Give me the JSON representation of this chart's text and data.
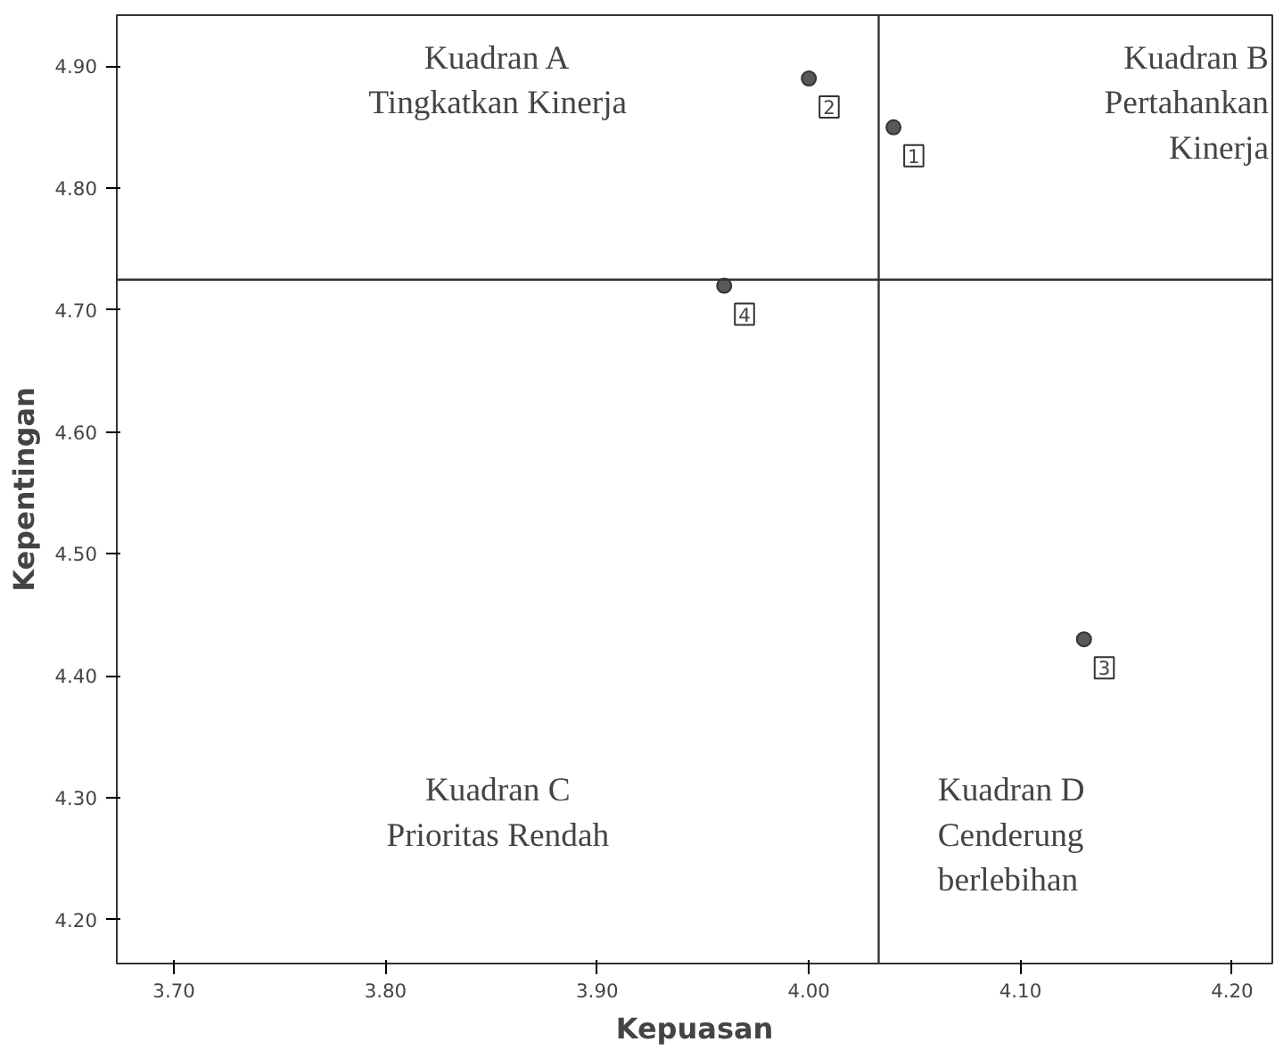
{
  "chart_data": {
    "type": "scatter",
    "xlabel": "Kepuasan",
    "ylabel": "Kepentingan",
    "x": [
      4.04,
      4.0,
      4.13,
      3.96
    ],
    "values": [
      4.85,
      4.89,
      4.43,
      4.72
    ],
    "color": "#595959",
    "marker": "circle",
    "grid": false,
    "xlim": [
      3.673,
      4.219
    ],
    "ylim": [
      4.164,
      4.942
    ],
    "xticks": [
      {
        "value": 3.7,
        "label": "3.70"
      },
      {
        "value": 3.8,
        "label": "3.80"
      },
      {
        "value": 3.9,
        "label": "3.90"
      },
      {
        "value": 4.0,
        "label": "4.00"
      },
      {
        "value": 4.1,
        "label": "4.10"
      },
      {
        "value": 4.2,
        "label": "4.20"
      }
    ],
    "yticks": [
      {
        "value": 4.2,
        "label": "4.20"
      },
      {
        "value": 4.3,
        "label": "4.30"
      },
      {
        "value": 4.4,
        "label": "4.40"
      },
      {
        "value": 4.5,
        "label": "4.50"
      },
      {
        "value": 4.6,
        "label": "4.60"
      },
      {
        "value": 4.7,
        "label": "4.70"
      },
      {
        "value": 4.8,
        "label": "4.80"
      },
      {
        "value": 4.9,
        "label": "4.90"
      }
    ],
    "ref_lines": [
      {
        "axis": "x",
        "value": 4.033,
        "color": "#333333"
      },
      {
        "axis": "y",
        "value": 4.725,
        "color": "#333333"
      }
    ],
    "annotations": [
      {
        "text": "1",
        "x": 4.04,
        "y": 4.85
      },
      {
        "text": "2",
        "x": 4.0,
        "y": 4.89
      },
      {
        "text": "3",
        "x": 4.13,
        "y": 4.43
      },
      {
        "text": "4",
        "x": 3.96,
        "y": 4.72
      },
      "Kuadran A\nTingkatkan Kinerja",
      "Kuadran B\nPertahankan\nKinerja",
      "Kuadran C\nPrioritas Rendah",
      "Kuadran D\nCenderung\nberlebihan"
    ]
  }
}
